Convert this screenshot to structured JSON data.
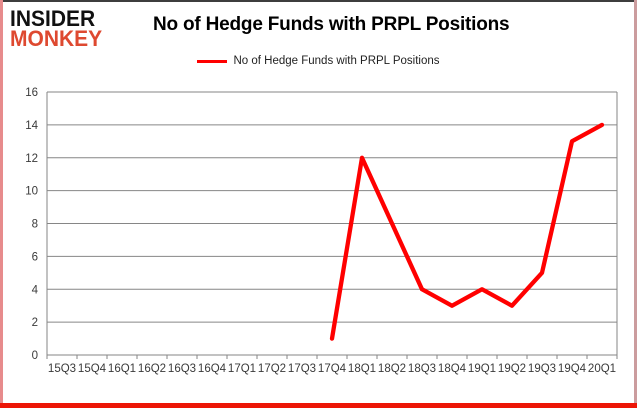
{
  "logo": {
    "line1": "INSIDER",
    "line2": "MONKEY"
  },
  "header": {
    "title": "No of Hedge Funds with PRPL Positions"
  },
  "legend": {
    "label": "No of Hedge Funds with PRPL Positions"
  },
  "colors": {
    "line": "#ff0000",
    "logo_red": "#de4930",
    "grid": "#868686",
    "axis_text": "#3a3a3a",
    "border_bottom_red": "#ec1506"
  },
  "chart_data": {
    "type": "line",
    "title": "No of Hedge Funds with PRPL Positions",
    "categories": [
      "15Q3",
      "15Q4",
      "16Q1",
      "16Q2",
      "16Q3",
      "16Q4",
      "17Q1",
      "17Q2",
      "17Q3",
      "17Q4",
      "18Q1",
      "18Q2",
      "18Q3",
      "18Q4",
      "19Q1",
      "19Q2",
      "19Q3",
      "19Q4",
      "20Q1"
    ],
    "series": [
      {
        "name": "No of Hedge Funds with PRPL Positions",
        "color": "#ff0000",
        "values": [
          null,
          null,
          null,
          null,
          null,
          null,
          null,
          null,
          null,
          1,
          12,
          8,
          4,
          3,
          4,
          3,
          5,
          13,
          14
        ]
      }
    ],
    "ylabel": "",
    "xlabel": "",
    "ylim": [
      0,
      16
    ],
    "y_ticks": [
      0,
      2,
      4,
      6,
      8,
      10,
      12,
      14,
      16
    ],
    "grid": true,
    "legend_position": "top-center"
  }
}
